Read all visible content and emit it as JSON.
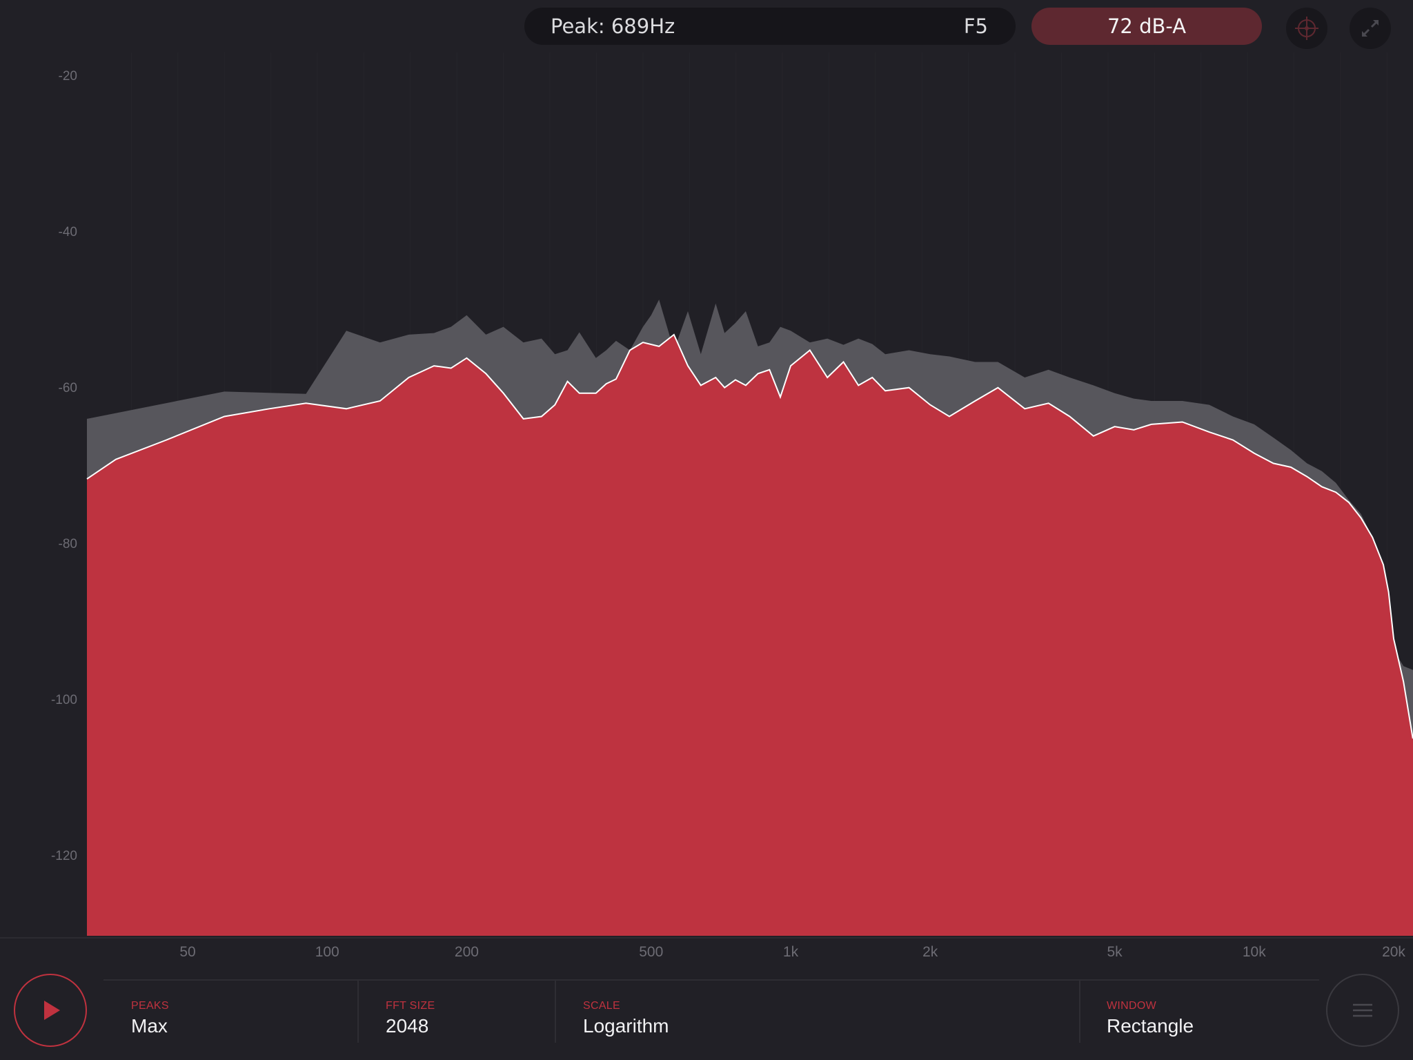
{
  "header": {
    "peak_label": "Peak: 689Hz",
    "note_label": "F5",
    "level_label": "72 dB-A",
    "target_icon": "crosshair-icon",
    "expand_icon": "fullscreen-icon"
  },
  "y_axis": {
    "ticks": [
      "-20",
      "-40",
      "-60",
      "-80",
      "-100",
      "-120"
    ]
  },
  "x_axis": {
    "ticks": [
      "50",
      "100",
      "200",
      "500",
      "1k",
      "2k",
      "5k",
      "10k",
      "20k"
    ]
  },
  "settings": {
    "peaks_label": "PEAKS",
    "peaks_value": "Max",
    "fft_label": "FFT SIZE",
    "fft_value": "2048",
    "scale_label": "SCALE",
    "scale_value": "Logarithm",
    "window_label": "WINDOW",
    "window_value": "Rectangle"
  },
  "controls": {
    "play_icon": "play-icon",
    "menu_icon": "menu-icon"
  },
  "colors": {
    "background": "#212026",
    "spectrum_fill": "#be3340",
    "peak_hold_fill": "#57565c",
    "accent": "#c0323f"
  },
  "chart_data": {
    "type": "area",
    "xscale": "log",
    "xlabel": "",
    "ylabel": "",
    "xlim": [
      28,
      22000
    ],
    "ylim": [
      -130,
      -15
    ],
    "grid": true,
    "series": [
      {
        "x": [
          28,
          35,
          45,
          60,
          75,
          90,
          110,
          130,
          150,
          170,
          185,
          200,
          220,
          240,
          265,
          290,
          310,
          330,
          350,
          380,
          400,
          420,
          450,
          480,
          520,
          560,
          600,
          640,
          689,
          720,
          760,
          800,
          850,
          900,
          950,
          1000,
          1100,
          1200,
          1300,
          1400,
          1500,
          1600,
          1800,
          2000,
          2200,
          2500,
          2800,
          3200,
          3600,
          4000,
          4500,
          5000,
          5500,
          6000,
          7000,
          8000,
          9000,
          10000,
          11000,
          12000,
          13000,
          14000,
          15000,
          16000,
          17000,
          18000,
          19000,
          19500,
          20000,
          21000,
          22000
        ],
        "values": [
          -71.5,
          -69,
          -66.5,
          -63.5,
          -62.5,
          -61.8,
          -62.5,
          -61.5,
          -58.5,
          -57,
          -57.3,
          -56,
          -58,
          -60.5,
          -63.8,
          -63.5,
          -62,
          -59,
          -60.5,
          -60.5,
          -59.3,
          -58.7,
          -55,
          -54,
          -54.5,
          -53,
          -57,
          -59.5,
          -58.5,
          -59.8,
          -58.8,
          -59.5,
          -58,
          -57.5,
          -61,
          -57,
          -55,
          -58.5,
          -56.5,
          -59.5,
          -58.5,
          -60.2,
          -59.8,
          -62,
          -63.5,
          -61.5,
          -59.8,
          -62.5,
          -61.8,
          -63.5,
          -66,
          -64.8,
          -65.2,
          -64.5,
          -64.2,
          -65.5,
          -66.5,
          -68.2,
          -69.5,
          -70,
          -71.2,
          -72.5,
          -73.2,
          -74.5,
          -76.5,
          -79,
          -82.5,
          -86,
          -92,
          -97.5,
          -104.8
        ]
      },
      {
        "x": [
          28,
          60,
          90,
          110,
          130,
          150,
          170,
          185,
          200,
          220,
          240,
          265,
          290,
          310,
          330,
          350,
          380,
          400,
          420,
          450,
          480,
          500,
          520,
          560,
          600,
          640,
          689,
          720,
          760,
          800,
          850,
          900,
          950,
          1000,
          1100,
          1200,
          1300,
          1400,
          1500,
          1600,
          1800,
          2000,
          2200,
          2500,
          2800,
          3200,
          3600,
          4000,
          4500,
          5000,
          5500,
          6000,
          7000,
          8000,
          9000,
          10000,
          11000,
          12000,
          13000,
          14000,
          15000,
          16000,
          17000,
          18000,
          19000,
          19500,
          20000,
          21000,
          22000
        ],
        "values": [
          -63.8,
          -60.3,
          -60.6,
          -52.5,
          -54,
          -53,
          -52.8,
          -52,
          -50.5,
          -53,
          -52,
          -54,
          -53.5,
          -55.5,
          -55,
          -52.7,
          -56,
          -55,
          -53.8,
          -55,
          -52,
          -50.5,
          -48.5,
          -55,
          -50,
          -55.5,
          -49,
          -52.8,
          -51.5,
          -50,
          -54.5,
          -54,
          -52,
          -52.5,
          -54,
          -53.5,
          -54.3,
          -53.5,
          -54.2,
          -55.5,
          -55,
          -55.5,
          -55.8,
          -56.5,
          -56.5,
          -58.5,
          -57.5,
          -58.5,
          -59.5,
          -60.5,
          -61.2,
          -61.5,
          -61.5,
          -62,
          -63.5,
          -64.5,
          -66.2,
          -67.8,
          -69.5,
          -70.5,
          -72,
          -74.2,
          -76,
          -79,
          -84.5,
          -90.5,
          -93.5,
          -95.5,
          -96
        ]
      }
    ]
  }
}
